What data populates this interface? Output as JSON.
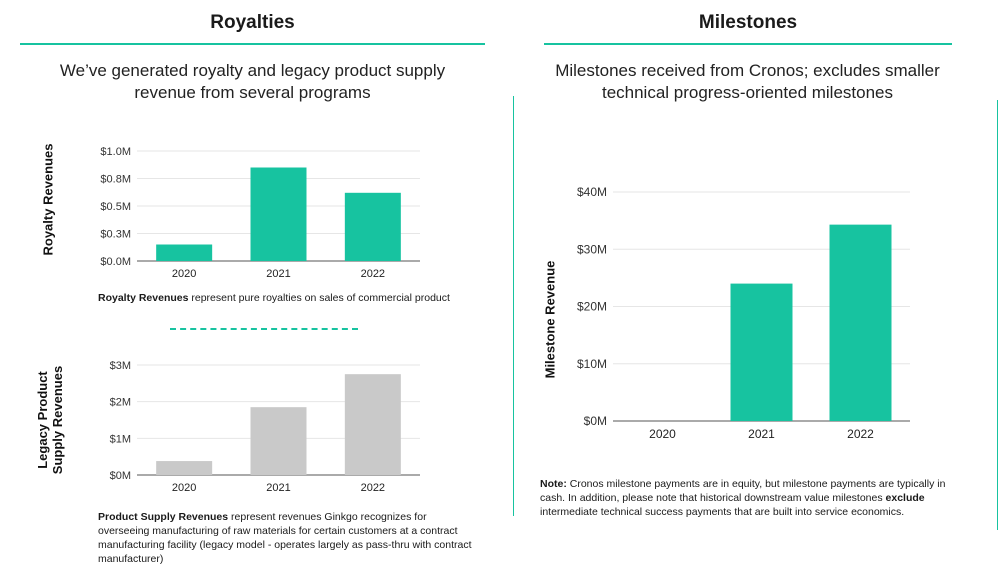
{
  "left": {
    "title": "Royalties",
    "subtitle_line1": "We’ve generated royalty and legacy product supply",
    "subtitle_line2": "revenue from several programs",
    "royalty_ylabel": "Royalty Revenues",
    "royalty_note_bold": "Royalty Revenues",
    "royalty_note_rest": " represent pure royalties on sales of commercial product",
    "supply_ylabel_line1": "Legacy Product",
    "supply_ylabel_line2": "Supply Revenues",
    "supply_note_bold": "Product Supply Revenues",
    "supply_note_rest": " represent revenues Ginkgo recognizes for overseeing manufacturing of raw materials for certain customers at a contract manufacturing facility (legacy model - operates largely as pass-thru with contract manufacturer)"
  },
  "right": {
    "title": "Milestones",
    "subtitle_line1": "Milestones received from Cronos; excludes smaller",
    "subtitle_line2": "technical progress-oriented milestones",
    "note_bold1": "Note:",
    "note_part1": " Cronos milestone payments are in equity, but milestone payments are typically in cash. In addition, please note that historical downstream value milestones ",
    "note_bold2": "exclude",
    "note_part2": " intermediate technical success payments that are built into service economics."
  },
  "colors": {
    "accent": "#17c3a0",
    "gray_bar": "#c9c9c9"
  },
  "chart_data": [
    {
      "id": "royalty",
      "type": "bar",
      "categories": [
        "2020",
        "2021",
        "2022"
      ],
      "values": [
        0.15,
        0.85,
        0.62
      ],
      "ylabel": "Royalty Revenues",
      "ylim": [
        0,
        1.0
      ],
      "ticks": [
        0,
        0.25,
        0.5,
        0.75,
        1.0
      ],
      "tick_labels": [
        "$0.0M",
        "$0.3M",
        "$0.5M",
        "$0.8M",
        "$1.0M"
      ],
      "color": "#17c3a0",
      "grid": true
    },
    {
      "id": "supply",
      "type": "bar",
      "categories": [
        "2020",
        "2021",
        "2022"
      ],
      "values": [
        0.38,
        1.85,
        2.75
      ],
      "ylabel": "Legacy Product Supply Revenues",
      "ylim": [
        0,
        3
      ],
      "ticks": [
        0,
        1,
        2,
        3
      ],
      "tick_labels": [
        "$0M",
        "$1M",
        "$2M",
        "$3M"
      ],
      "color": "#c9c9c9",
      "grid": true
    },
    {
      "id": "milestone",
      "type": "bar",
      "categories": [
        "2020",
        "2021",
        "2022"
      ],
      "values": [
        0,
        24,
        34.3
      ],
      "ylabel": "Milestone Revenue",
      "ylim": [
        0,
        40
      ],
      "ticks": [
        0,
        10,
        20,
        30,
        40
      ],
      "tick_labels": [
        "$0M",
        "$10M",
        "$20M",
        "$30M",
        "$40M"
      ],
      "color": "#17c3a0",
      "grid": true
    }
  ]
}
